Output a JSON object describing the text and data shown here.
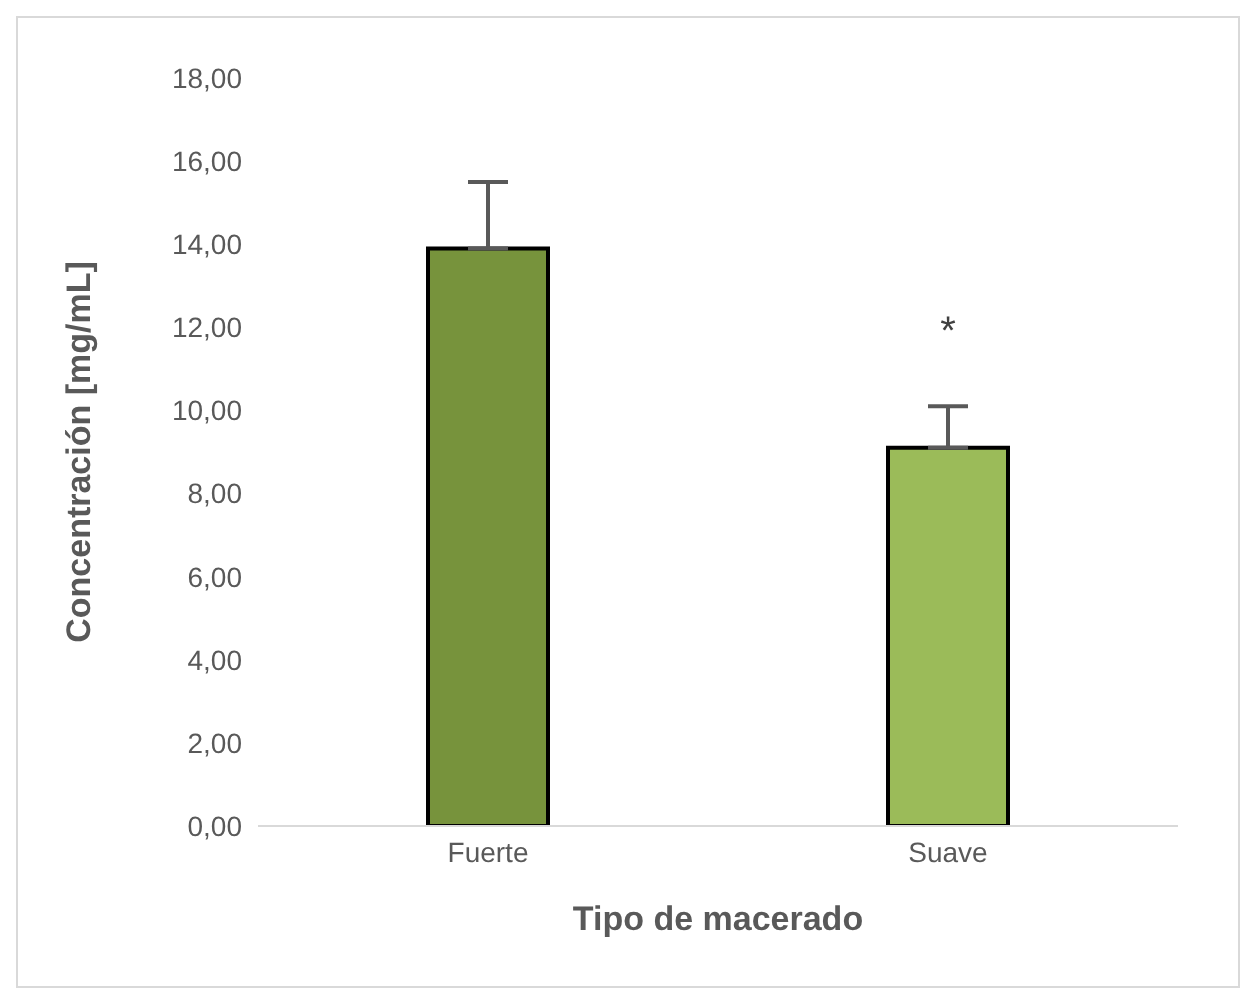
{
  "chart_data": {
    "type": "bar",
    "xlabel": "Tipo de macerado",
    "ylabel": "Concentración [mg/mL]",
    "categories": [
      "Fuerte",
      "Suave"
    ],
    "values": [
      13.9,
      9.1
    ],
    "colors": [
      "#77933c",
      "#9bbb59"
    ],
    "errors": [
      [
        13.9,
        15.5
      ],
      [
        9.1,
        10.1
      ]
    ],
    "ylim": [
      0,
      18
    ],
    "yticks": [
      {
        "value": 0,
        "label": "0,00"
      },
      {
        "value": 2,
        "label": "2,00"
      },
      {
        "value": 4,
        "label": "4,00"
      },
      {
        "value": 6,
        "label": "6,00"
      },
      {
        "value": 8,
        "label": "8,00"
      },
      {
        "value": 10,
        "label": "10,00"
      },
      {
        "value": 12,
        "label": "12,00"
      },
      {
        "value": 14,
        "label": "14,00"
      },
      {
        "value": 16,
        "label": "16,00"
      },
      {
        "value": 18,
        "label": "18,00"
      }
    ],
    "annotations": [
      {
        "text": "*",
        "x": "Suave",
        "y": 9.1
      }
    ],
    "grid": false,
    "legend": false
  }
}
